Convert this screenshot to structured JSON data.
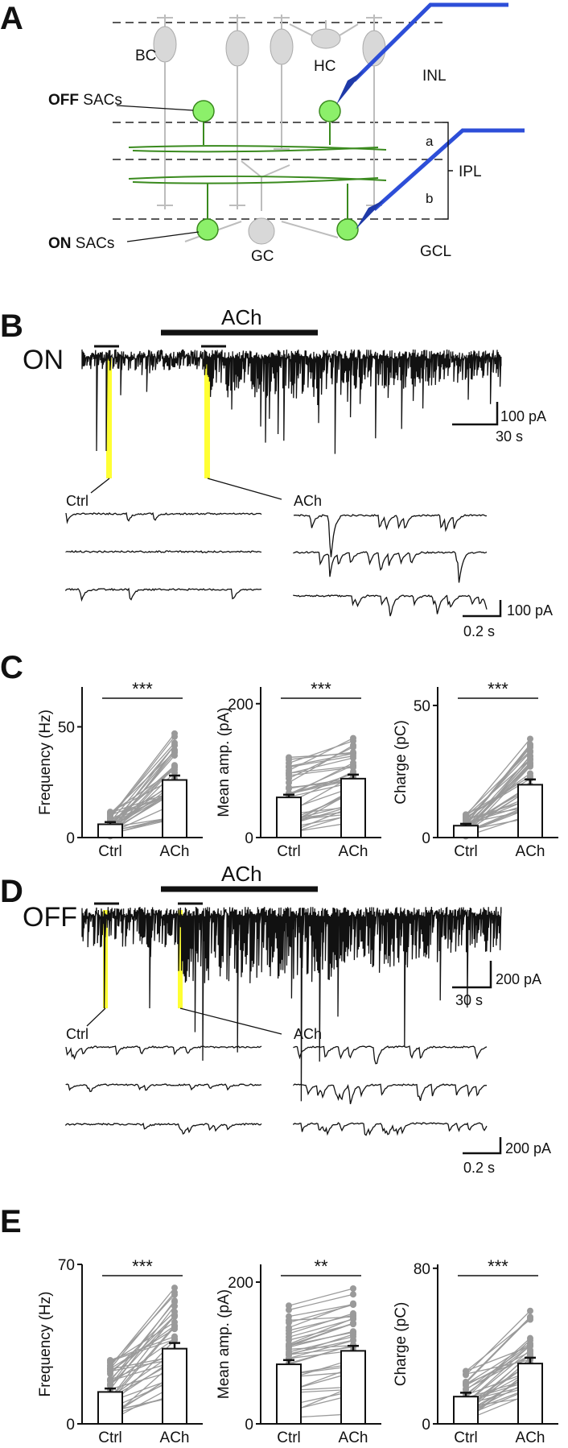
{
  "panels": {
    "A": {
      "letter": "A",
      "labels": {
        "bc": "BC",
        "hc": "HC",
        "inl": "INL",
        "off_sacs_bold": "OFF",
        "off_sacs_rest": " SACs",
        "on_sacs_bold": "ON",
        "on_sacs_rest": " SACs",
        "sub_a": "a",
        "sub_b": "b",
        "ipl": "IPL",
        "gc": "GC",
        "gcl": "GCL"
      }
    },
    "B": {
      "letter": "B",
      "condition": "ON",
      "drug_bar": "ACh",
      "scale_current": "100 pA",
      "scale_time": "30 s",
      "inset_ctrl": "Ctrl",
      "inset_ach": "ACh",
      "inset_scale_current": "100 pA",
      "inset_scale_time": "0.2 s"
    },
    "C": {
      "letter": "C",
      "charts": [
        {
          "ylabel": "Frequency (Hz)",
          "sig": "***",
          "ticks": [
            "0",
            "50"
          ],
          "categories": [
            "Ctrl",
            "ACh"
          ]
        },
        {
          "ylabel": "Mean amp. (pA)",
          "sig": "***",
          "ticks": [
            "0",
            "200"
          ],
          "categories": [
            "Ctrl",
            "ACh"
          ]
        },
        {
          "ylabel": "Charge (pC)",
          "sig": "***",
          "ticks": [
            "0",
            "50"
          ],
          "categories": [
            "Ctrl",
            "ACh"
          ]
        }
      ]
    },
    "D": {
      "letter": "D",
      "condition": "OFF",
      "drug_bar": "ACh",
      "scale_current": "200 pA",
      "scale_time": "30 s",
      "inset_ctrl": "Ctrl",
      "inset_ach": "ACh",
      "inset_scale_current": "200 pA",
      "inset_scale_time": "0.2 s"
    },
    "E": {
      "letter": "E",
      "charts": [
        {
          "ylabel": "Frequency (Hz)",
          "sig": "***",
          "ticks": [
            "0",
            "70"
          ],
          "categories": [
            "Ctrl",
            "ACh"
          ]
        },
        {
          "ylabel": "Mean amp. (pA)",
          "sig": "**",
          "ticks": [
            "0",
            "200"
          ],
          "categories": [
            "Ctrl",
            "ACh"
          ]
        },
        {
          "ylabel": "Charge (pC)",
          "sig": "***",
          "ticks": [
            "0",
            "80"
          ],
          "categories": [
            "Ctrl",
            "ACh"
          ]
        }
      ]
    }
  },
  "chart_data": [
    {
      "type": "bar",
      "panel": "C",
      "ylabel": "Frequency (Hz)",
      "categories": [
        "Ctrl",
        "ACh"
      ],
      "values": [
        6,
        26
      ],
      "sem": [
        1,
        2
      ],
      "ylim": [
        0,
        68
      ],
      "significance": "***"
    },
    {
      "type": "bar",
      "panel": "C",
      "ylabel": "Mean amp. (pA)",
      "categories": [
        "Ctrl",
        "ACh"
      ],
      "values": [
        60,
        88
      ],
      "sem": [
        4,
        6
      ],
      "ylim": [
        0,
        225
      ],
      "significance": "***"
    },
    {
      "type": "bar",
      "panel": "C",
      "ylabel": "Charge (pC)",
      "categories": [
        "Ctrl",
        "ACh"
      ],
      "values": [
        4.5,
        20
      ],
      "sem": [
        0.7,
        2
      ],
      "ylim": [
        0,
        57
      ],
      "significance": "***"
    },
    {
      "type": "bar",
      "panel": "E",
      "ylabel": "Frequency (Hz)",
      "categories": [
        "Ctrl",
        "ACh"
      ],
      "values": [
        14,
        33
      ],
      "sem": [
        1.5,
        2.5
      ],
      "ylim": [
        0,
        70
      ],
      "significance": "***"
    },
    {
      "type": "bar",
      "panel": "E",
      "ylabel": "Mean amp. (pA)",
      "categories": [
        "Ctrl",
        "ACh"
      ],
      "values": [
        84,
        103
      ],
      "sem": [
        6,
        7
      ],
      "ylim": [
        0,
        225
      ],
      "significance": "**"
    },
    {
      "type": "bar",
      "panel": "E",
      "ylabel": "Charge (pC)",
      "categories": [
        "Ctrl",
        "ACh"
      ],
      "values": [
        14,
        31
      ],
      "sem": [
        2,
        3
      ],
      "ylim": [
        0,
        82
      ],
      "significance": "***"
    }
  ]
}
